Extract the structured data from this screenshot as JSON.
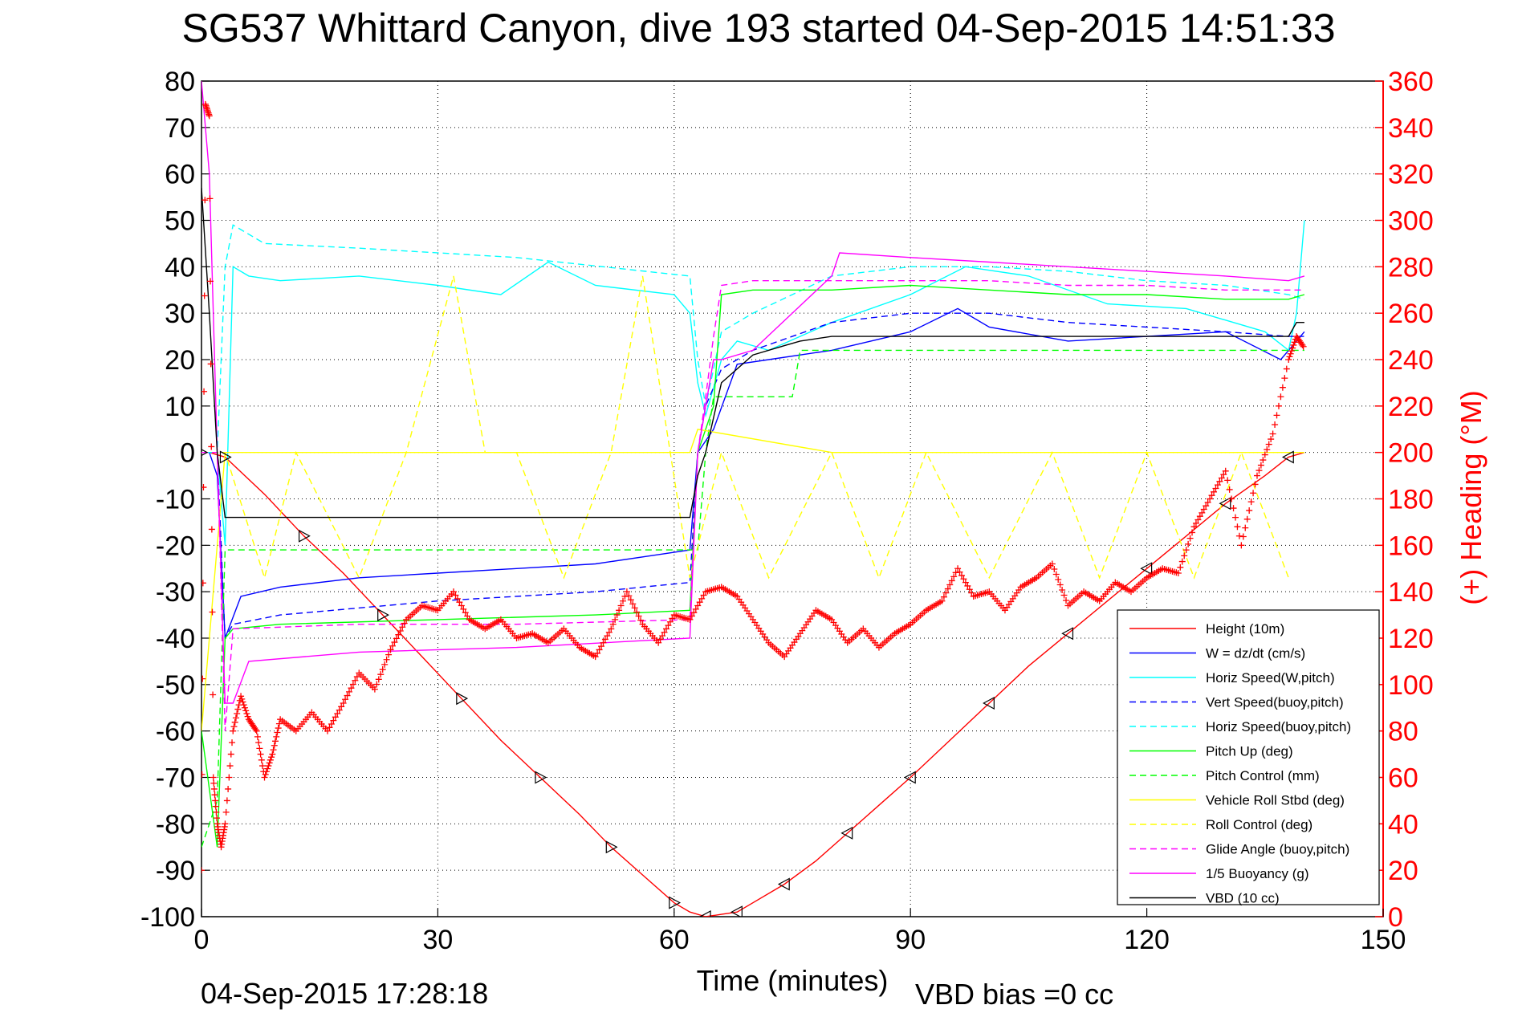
{
  "chart_data": {
    "type": "line",
    "title": "SG537 Whittard Canyon, dive 193 started 04-Sep-2015 14:51:33",
    "xlabel": "Time (minutes)",
    "ylabel": "",
    "y2label": "(+) Heading (°M)",
    "xlim": [
      0,
      150
    ],
    "ylim": [
      -100,
      80
    ],
    "y2lim": [
      0,
      360
    ],
    "xticks": [
      "0",
      "30",
      "60",
      "90",
      "120",
      "150"
    ],
    "yticks": [
      "80",
      "70",
      "60",
      "50",
      "40",
      "30",
      "20",
      "10",
      "0",
      "-10",
      "-20",
      "-30",
      "-40",
      "-50",
      "-60",
      "-70",
      "-80",
      "-90",
      "-100"
    ],
    "y2ticks": [
      "360",
      "340",
      "320",
      "300",
      "280",
      "260",
      "240",
      "220",
      "200",
      "180",
      "160",
      "140",
      "120",
      "100",
      "80",
      "60",
      "40",
      "20",
      "0"
    ],
    "grid": true,
    "legend_position": "bottom-right",
    "footer_left": "04-Sep-2015 17:28:18",
    "footer_right": "VBD bias =0 cc",
    "series": [
      {
        "name": "Height (10m)",
        "color": "#ff0000",
        "style": "solid",
        "x": [
          0,
          1,
          3,
          8,
          13,
          18,
          23,
          28,
          33,
          38,
          43,
          48,
          52,
          56,
          60,
          62,
          64,
          66,
          68,
          70,
          74,
          78,
          82,
          86,
          90,
          95,
          100,
          105,
          110,
          115,
          120,
          125,
          130,
          135,
          138,
          140
        ],
        "y": [
          0,
          0,
          -1,
          -9,
          -18,
          -26,
          -35,
          -44,
          -53,
          -62,
          -70,
          -78,
          -85,
          -91,
          -97,
          -99,
          -100,
          -99.5,
          -99,
          -97,
          -93,
          -88,
          -82,
          -76,
          -70,
          -62,
          -54,
          -46,
          -39,
          -32,
          -25,
          -18,
          -11,
          -5,
          -1,
          0
        ]
      },
      {
        "name": "W = dz/dt (cm/s)",
        "color": "#0000ff",
        "style": "solid",
        "x": [
          0,
          1,
          2,
          3,
          5,
          10,
          20,
          30,
          40,
          50,
          58,
          62,
          63,
          65,
          68,
          72,
          80,
          90,
          96,
          100,
          110,
          120,
          130,
          137,
          139,
          140
        ],
        "y": [
          0,
          0,
          -5,
          -40,
          -31,
          -29,
          -27,
          -26,
          -25,
          -24,
          -22,
          -21,
          0,
          5,
          19,
          20,
          22,
          26,
          31,
          27,
          24,
          25,
          26,
          20,
          24,
          26
        ]
      },
      {
        "name": "Horiz Speed(W,pitch)",
        "color": "#00ffff",
        "style": "solid",
        "x": [
          0,
          2,
          3,
          4,
          6,
          10,
          20,
          30,
          38,
          44,
          50,
          60,
          62,
          63,
          64,
          66,
          68,
          72,
          80,
          90,
          97,
          105,
          115,
          125,
          135,
          138,
          139,
          140
        ],
        "y": [
          0,
          0,
          -20,
          40,
          38,
          37,
          38,
          36,
          34,
          41,
          36,
          34,
          30,
          15,
          8,
          20,
          24,
          22,
          28,
          34,
          40,
          38,
          32,
          31,
          26,
          22,
          30,
          50
        ]
      },
      {
        "name": "Vert Speed(buoy,pitch)",
        "color": "#0000ff",
        "style": "dashed",
        "x": [
          0,
          2,
          3,
          4,
          10,
          30,
          50,
          62,
          63,
          64,
          66,
          70,
          80,
          90,
          100,
          110,
          120,
          130,
          138,
          140
        ],
        "y": [
          0,
          0,
          -40,
          -37,
          -35,
          -32,
          -30,
          -28,
          0,
          10,
          18,
          22,
          28,
          30,
          30,
          28,
          27,
          26,
          25,
          25
        ]
      },
      {
        "name": "Horiz Speed(buoy,pitch)",
        "color": "#00ffff",
        "style": "dashed",
        "x": [
          0,
          2,
          3,
          4,
          8,
          20,
          40,
          62,
          63,
          64,
          66,
          70,
          80,
          90,
          100,
          110,
          120,
          130,
          138,
          140
        ],
        "y": [
          0,
          0,
          40,
          49,
          45,
          44,
          42,
          38,
          20,
          10,
          26,
          30,
          38,
          40,
          40,
          39,
          37,
          36,
          34,
          33
        ]
      },
      {
        "name": "Pitch Up (deg)",
        "color": "#00ff00",
        "style": "solid",
        "x": [
          0,
          2,
          3,
          4,
          10,
          30,
          50,
          62,
          63,
          65,
          66,
          70,
          80,
          90,
          100,
          110,
          120,
          130,
          138,
          140
        ],
        "y": [
          -60,
          -85,
          -40,
          -38,
          -37,
          -36,
          -35,
          -34,
          0,
          10,
          34,
          35,
          35,
          36,
          35,
          34,
          34,
          33,
          33,
          34
        ]
      },
      {
        "name": "Pitch Control (mm)",
        "color": "#00ff00",
        "style": "dashed",
        "x": [
          0,
          2,
          3,
          4,
          63,
          64,
          65,
          66,
          70,
          75,
          76,
          80,
          90,
          100,
          120,
          140
        ],
        "y": [
          -85,
          -75,
          -21,
          -21,
          -21,
          0,
          12,
          12,
          12,
          12,
          22,
          22,
          22,
          22,
          22,
          22
        ]
      },
      {
        "name": "Vehicle Roll Stbd (deg)",
        "color": "#ffff00",
        "style": "solid",
        "x": [
          0,
          3,
          20,
          40,
          60,
          62,
          63,
          80,
          100,
          120,
          140
        ],
        "y": [
          -60,
          0,
          0,
          0,
          0,
          0,
          5,
          0,
          0,
          0,
          0
        ]
      },
      {
        "name": "Roll Control (deg)",
        "color": "#ffff00",
        "style": "dashed",
        "x": [
          0,
          3,
          8,
          12,
          20,
          26,
          32,
          36,
          40,
          46,
          52,
          56,
          62,
          66,
          72,
          80,
          86,
          92,
          100,
          108,
          114,
          120,
          126,
          132,
          138
        ],
        "y": [
          0,
          0,
          -27,
          0,
          -27,
          0,
          38,
          0,
          0,
          -27,
          0,
          38,
          -27,
          0,
          -27,
          0,
          -27,
          0,
          -27,
          0,
          -27,
          0,
          -27,
          0,
          -27
        ]
      },
      {
        "name": "Glide Angle (buoy,pitch)",
        "color": "#ff00ff",
        "style": "dashed",
        "x": [
          0,
          2,
          3,
          4,
          20,
          40,
          62,
          63,
          64,
          65,
          66,
          70,
          80,
          90,
          100,
          110,
          120,
          130,
          138,
          140
        ],
        "y": [
          0,
          0,
          -60,
          -38,
          -37,
          -37,
          -36,
          0,
          12,
          25,
          36,
          37,
          37,
          37,
          37,
          36,
          36,
          35,
          35,
          35
        ]
      },
      {
        "name": "1/5 Buoyancy (g)",
        "color": "#ff00ff",
        "style": "solid",
        "x": [
          0,
          1,
          2,
          3,
          4,
          6,
          20,
          40,
          62,
          63,
          64,
          65,
          66,
          70,
          80,
          81,
          90,
          100,
          110,
          120,
          130,
          138,
          140
        ],
        "y": [
          80,
          60,
          0,
          -54,
          -54,
          -45,
          -43,
          -42,
          -40,
          0,
          10,
          20,
          20,
          22,
          38,
          43,
          42,
          41,
          40,
          39,
          38,
          37,
          38
        ]
      },
      {
        "name": "VBD (10 cc)",
        "color": "#000000",
        "style": "solid",
        "x": [
          0,
          1,
          2,
          3,
          4,
          62,
          63,
          64,
          66,
          70,
          74,
          76,
          80,
          90,
          100,
          110,
          120,
          130,
          138,
          139,
          140
        ],
        "y": [
          57,
          30,
          0,
          -14,
          -14,
          -14,
          -5,
          0,
          15,
          21,
          23,
          24,
          25,
          25,
          25,
          25,
          25,
          25,
          25,
          28,
          28
        ]
      }
    ],
    "heading_series": {
      "name": "(+) Heading (°M)",
      "color": "#ff0000",
      "marker": "+",
      "axis": "right",
      "x": [
        0,
        0.5,
        1,
        1.5,
        2,
        2.5,
        3,
        4,
        5,
        6,
        7,
        8,
        9,
        10,
        12,
        14,
        16,
        18,
        20,
        22,
        24,
        26,
        28,
        30,
        32,
        34,
        36,
        38,
        40,
        42,
        44,
        46,
        48,
        50,
        52,
        54,
        56,
        58,
        60,
        62,
        64,
        66,
        68,
        70,
        72,
        74,
        76,
        78,
        80,
        82,
        84,
        86,
        88,
        90,
        92,
        94,
        96,
        98,
        100,
        102,
        104,
        106,
        108,
        110,
        112,
        114,
        116,
        118,
        120,
        122,
        124,
        126,
        128,
        130,
        132,
        134,
        136,
        138,
        139,
        140
      ],
      "y": [
        20,
        350,
        345,
        60,
        40,
        30,
        40,
        80,
        95,
        85,
        80,
        60,
        70,
        85,
        80,
        88,
        80,
        92,
        105,
        98,
        115,
        128,
        134,
        132,
        140,
        128,
        124,
        128,
        120,
        122,
        118,
        124,
        116,
        112,
        124,
        140,
        126,
        118,
        130,
        128,
        140,
        142,
        138,
        128,
        118,
        112,
        122,
        132,
        128,
        118,
        124,
        116,
        122,
        126,
        132,
        136,
        150,
        138,
        140,
        132,
        142,
        146,
        152,
        134,
        140,
        136,
        144,
        140,
        146,
        150,
        148,
        168,
        180,
        192,
        160,
        190,
        208,
        240,
        250,
        245
      ]
    }
  }
}
